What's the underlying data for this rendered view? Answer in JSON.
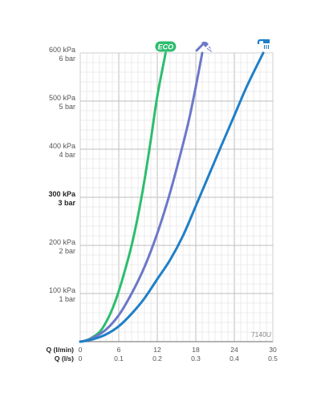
{
  "chart_data": {
    "type": "line",
    "x_axes": [
      {
        "label": "Q (l/min)",
        "ticks": [
          "0",
          "6",
          "12",
          "18",
          "24",
          "30"
        ],
        "range": [
          0,
          30
        ]
      },
      {
        "label": "Q (l/s)",
        "ticks": [
          "0",
          "0.1",
          "0.2",
          "0.3",
          "0.4",
          "0.5"
        ],
        "range": [
          0,
          0.5
        ]
      }
    ],
    "y_axis": {
      "range": [
        0,
        600
      ],
      "ticks": [
        {
          "value": 100,
          "kpa": "100 kPa",
          "bar": "1 bar",
          "bold": false
        },
        {
          "value": 200,
          "kpa": "200 kPa",
          "bar": "2 bar",
          "bold": false
        },
        {
          "value": 300,
          "kpa": "300 kPa",
          "bar": "3 bar",
          "bold": true
        },
        {
          "value": 400,
          "kpa": "400 kPa",
          "bar": "4 bar",
          "bold": false
        },
        {
          "value": 500,
          "kpa": "500 kPa",
          "bar": "5 bar",
          "bold": false
        },
        {
          "value": 600,
          "kpa": "600 kPa",
          "bar": "6 bar",
          "bold": false
        }
      ]
    },
    "grid": true,
    "series": [
      {
        "name": "ECO",
        "icon": "eco-badge",
        "color": "#2dbd6e",
        "points": [
          [
            0,
            0
          ],
          [
            0.5,
            1
          ],
          [
            1.5,
            6
          ],
          [
            3,
            20
          ],
          [
            4,
            40
          ],
          [
            5,
            68
          ],
          [
            6,
            105
          ],
          [
            7,
            150
          ],
          [
            8,
            200
          ],
          [
            9,
            262
          ],
          [
            10,
            335
          ],
          [
            11,
            420
          ],
          [
            12,
            510
          ],
          [
            13.3,
            600
          ]
        ]
      },
      {
        "name": "",
        "icon": "hand-shower-icon",
        "color": "#6b78c9",
        "points": [
          [
            0,
            0
          ],
          [
            0.5,
            1
          ],
          [
            2,
            8
          ],
          [
            4,
            25
          ],
          [
            6,
            55
          ],
          [
            8,
            100
          ],
          [
            10,
            155
          ],
          [
            12,
            225
          ],
          [
            14,
            310
          ],
          [
            16,
            410
          ],
          [
            17,
            465
          ],
          [
            18,
            530
          ],
          [
            19,
            600
          ]
        ]
      },
      {
        "name": "",
        "icon": "overhead-shower-icon",
        "color": "#1f7fc8",
        "points": [
          [
            0,
            0
          ],
          [
            0.5,
            1
          ],
          [
            2,
            5
          ],
          [
            4,
            15
          ],
          [
            6,
            32
          ],
          [
            8,
            58
          ],
          [
            10,
            90
          ],
          [
            12,
            130
          ],
          [
            14,
            170
          ],
          [
            16,
            220
          ],
          [
            18,
            282
          ],
          [
            20,
            345
          ],
          [
            22,
            408
          ],
          [
            24,
            470
          ],
          [
            26,
            532
          ],
          [
            28.5,
            600
          ]
        ]
      }
    ],
    "annotations": [
      "7140U"
    ]
  }
}
